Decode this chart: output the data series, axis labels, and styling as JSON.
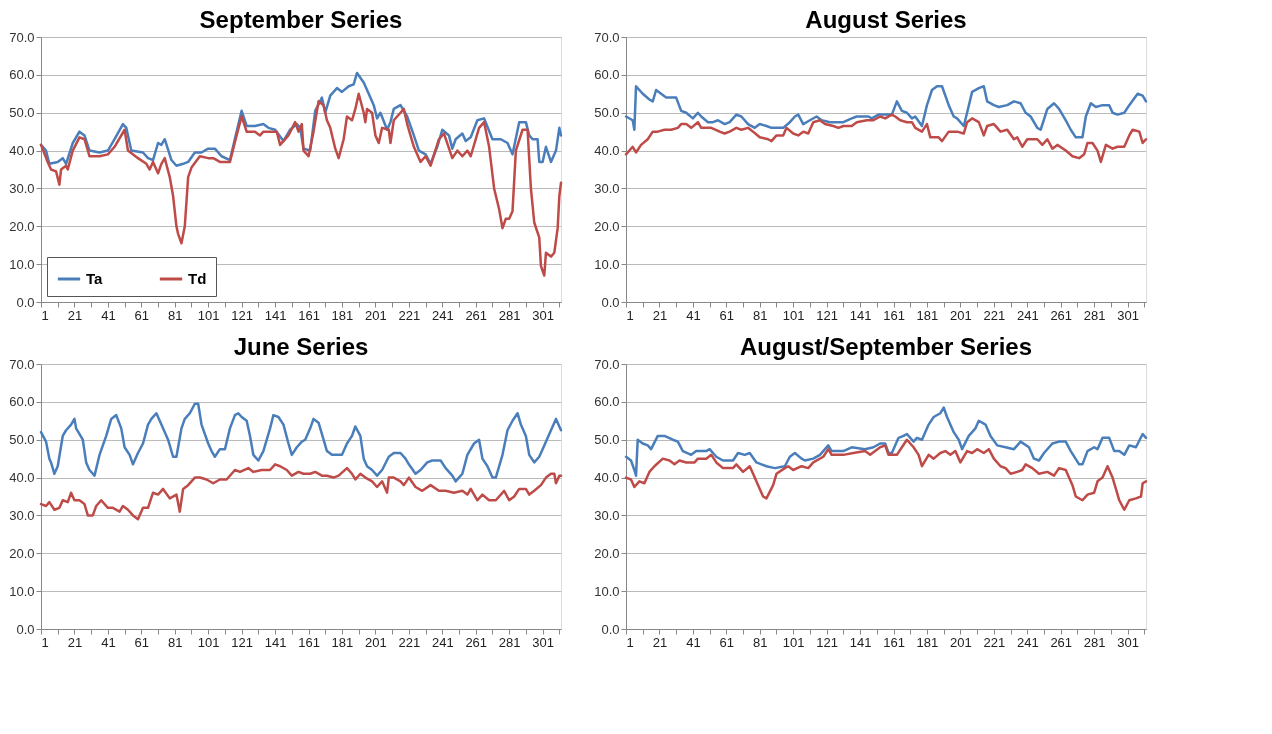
{
  "chart_data": [
    {
      "type": "line",
      "title": "September Series",
      "legend": "bottom left",
      "grid": "y",
      "xlim": [
        1,
        312
      ],
      "ylim": [
        0,
        70
      ],
      "xticks": [
        1,
        {
          "value": 11,
          "label": null
        },
        21,
        {
          "value": 31,
          "label": null
        },
        41,
        {
          "value": 51,
          "label": null
        },
        61,
        {
          "value": 71,
          "label": null
        },
        81,
        {
          "value": 91,
          "label": null
        },
        101,
        {
          "value": 111,
          "label": null
        },
        121,
        {
          "value": 131,
          "label": null
        },
        141,
        {
          "value": 151,
          "label": null
        },
        161,
        {
          "value": 171,
          "label": null
        },
        181,
        {
          "value": 191,
          "label": null
        },
        201,
        {
          "value": 211,
          "label": null
        },
        221,
        {
          "value": 231,
          "label": null
        },
        241,
        {
          "value": 251,
          "label": null
        },
        261,
        {
          "value": 271,
          "label": null
        },
        281,
        {
          "value": 291,
          "label": null
        },
        301,
        {
          "value": 311,
          "label": null
        }
      ],
      "yticks": [
        {
          "value": 0,
          "label": "0.0"
        },
        {
          "value": 10,
          "label": "10.0"
        },
        {
          "value": 20,
          "label": "20.0"
        },
        {
          "value": 30,
          "label": "30.0"
        },
        {
          "value": 40,
          "label": "40.0"
        },
        {
          "value": 50,
          "label": "50.0"
        },
        {
          "value": 60,
          "label": "60.0"
        },
        {
          "value": 70,
          "label": "70.0"
        }
      ],
      "series": [
        {
          "name": "Ta",
          "color": "#4a7ebb",
          "x": [
            1,
            4,
            6,
            11,
            14,
            16,
            20,
            24,
            27,
            30,
            36,
            41,
            45,
            50,
            52,
            55,
            62,
            65,
            68,
            71,
            73,
            75,
            79,
            82,
            86,
            89,
            93,
            97,
            101,
            105,
            109,
            114,
            118,
            121,
            124,
            129,
            134,
            137,
            141,
            146,
            150,
            154,
            156,
            158,
            162,
            165,
            169,
            171,
            174,
            178,
            181,
            185,
            188,
            190,
            194,
            197,
            200,
            202,
            204,
            208,
            210,
            212,
            216,
            220,
            224,
            227,
            231,
            234,
            238,
            241,
            245,
            247,
            249,
            253,
            255,
            258,
            262,
            266,
            271,
            276,
            280,
            283,
            287,
            291,
            293,
            295,
            298,
            299,
            301,
            303,
            306,
            309,
            311,
            312
          ],
          "values": [
            41.5,
            40,
            36.5,
            37,
            38,
            36.5,
            42,
            45,
            44,
            40,
            39.5,
            40,
            43,
            47,
            46,
            40,
            39.5,
            38,
            37.5,
            42,
            41.5,
            43,
            37.5,
            36,
            36.5,
            37,
            39.5,
            39.5,
            40.5,
            40.5,
            38.5,
            37.5,
            45,
            50.5,
            46.5,
            46.5,
            47,
            46,
            45.5,
            42.5,
            45.5,
            47,
            46,
            40.5,
            40,
            50.5,
            54,
            50,
            54.5,
            56.5,
            55.5,
            57,
            57.5,
            60.5,
            58,
            55,
            52,
            48.5,
            50,
            45.5,
            47.5,
            51,
            52,
            49,
            44,
            40,
            39,
            36.5,
            41,
            45.5,
            44,
            40.5,
            43,
            44.5,
            42.5,
            43.5,
            48,
            48.5,
            43,
            43,
            42,
            39,
            47.5,
            47.5,
            44,
            43,
            43,
            37,
            37,
            41,
            37,
            40,
            46,
            44
          ]
        },
        {
          "name": "Td",
          "color": "#be4b48",
          "x": [
            1,
            5,
            7,
            10,
            12,
            13,
            16,
            17,
            20,
            24,
            27,
            30,
            36,
            41,
            45,
            51,
            53,
            59,
            64,
            66,
            68,
            71,
            73,
            75,
            78,
            80,
            82,
            83,
            85,
            87,
            89,
            91,
            96,
            101,
            104,
            108,
            111,
            114,
            118,
            121,
            124,
            129,
            132,
            134,
            142,
            144,
            149,
            153,
            155,
            157,
            158,
            161,
            164,
            167,
            170,
            172,
            174,
            177,
            179,
            182,
            184,
            187,
            189,
            191,
            194,
            195,
            196,
            199,
            201,
            203,
            205,
            209,
            210,
            212,
            216,
            218,
            220,
            224,
            228,
            231,
            234,
            239,
            242,
            247,
            250,
            253,
            256,
            258,
            263,
            266,
            269,
            272,
            275,
            277,
            279,
            281,
            283,
            285,
            289,
            292,
            294,
            296,
            299,
            300,
            302,
            303,
            306,
            308,
            310,
            311,
            312
          ],
          "values": [
            41.5,
            37,
            35,
            34.5,
            31,
            35,
            36,
            35,
            40,
            43.5,
            43,
            38.5,
            38.5,
            39,
            41,
            45.5,
            40,
            38,
            36.5,
            35,
            37,
            34,
            36.5,
            38,
            33,
            28,
            20,
            18,
            15.5,
            20,
            33,
            35.5,
            38.5,
            38,
            38,
            37,
            37,
            37,
            44,
            49,
            45,
            45,
            44,
            45,
            45,
            41.5,
            44,
            47.5,
            45,
            47,
            40,
            38.5,
            45,
            53,
            52,
            48,
            46,
            40.5,
            38,
            43,
            49,
            48,
            51,
            55,
            50,
            47.5,
            51,
            50,
            44,
            42,
            46,
            45.5,
            42,
            48,
            50,
            51,
            47,
            41,
            37,
            38.5,
            36,
            43,
            44.5,
            38,
            40,
            38.5,
            40,
            38.5,
            46,
            47.5,
            41,
            30,
            24.5,
            19.5,
            22,
            22,
            24,
            40,
            45.5,
            45.5,
            30,
            21,
            17,
            9.5,
            7,
            13,
            12,
            13,
            19.5,
            28,
            31.5
          ]
        }
      ]
    },
    {
      "type": "line",
      "title": "August Series",
      "legend": false,
      "grid": "y",
      "xlim": [
        1,
        312
      ],
      "ylim": [
        0,
        70
      ],
      "xticks": [
        1,
        {
          "value": 11,
          "label": null
        },
        21,
        {
          "value": 31,
          "label": null
        },
        41,
        {
          "value": 51,
          "label": null
        },
        61,
        {
          "value": 71,
          "label": null
        },
        81,
        {
          "value": 91,
          "label": null
        },
        101,
        {
          "value": 111,
          "label": null
        },
        121,
        {
          "value": 131,
          "label": null
        },
        141,
        {
          "value": 151,
          "label": null
        },
        161,
        {
          "value": 171,
          "label": null
        },
        181,
        {
          "value": 191,
          "label": null
        },
        201,
        {
          "value": 211,
          "label": null
        },
        221,
        {
          "value": 231,
          "label": null
        },
        241,
        {
          "value": 251,
          "label": null
        },
        261,
        {
          "value": 271,
          "label": null
        },
        281,
        {
          "value": 291,
          "label": null
        },
        301,
        {
          "value": 311,
          "label": null
        }
      ],
      "yticks": [
        {
          "value": 0,
          "label": "0.0"
        },
        {
          "value": 10,
          "label": "10.0"
        },
        {
          "value": 20,
          "label": "20.0"
        },
        {
          "value": 30,
          "label": "30.0"
        },
        {
          "value": 40,
          "label": "40.0"
        },
        {
          "value": 50,
          "label": "50.0"
        },
        {
          "value": 60,
          "label": "60.0"
        },
        {
          "value": 70,
          "label": "70.0"
        }
      ],
      "series": [
        {
          "color": "#4a7ebb",
          "x": [
            1,
            5,
            6,
            7,
            11,
            15,
            17,
            19,
            25,
            31,
            34,
            37,
            41,
            44,
            46,
            50,
            53,
            56,
            60,
            63,
            67,
            70,
            74,
            78,
            81,
            85,
            88,
            95,
            99,
            102,
            104,
            107,
            111,
            115,
            118,
            123,
            131,
            136,
            139,
            146,
            148,
            152,
            160,
            163,
            166,
            169,
            172,
            174,
            178,
            181,
            184,
            187,
            190,
            194,
            197,
            199,
            203,
            205,
            208,
            212,
            215,
            217,
            221,
            224,
            229,
            233,
            237,
            240,
            243,
            247,
            249,
            253,
            257,
            260,
            264,
            267,
            270,
            274,
            276,
            279,
            282,
            286,
            290,
            292,
            295,
            299,
            302,
            307,
            310,
            312
          ],
          "values": [
            49,
            48,
            45.5,
            57,
            55,
            53.5,
            53,
            56,
            54,
            54,
            50.5,
            50,
            48.5,
            50,
            49,
            47.5,
            47.5,
            48,
            47,
            47.5,
            49.5,
            49,
            47,
            46,
            47,
            46.5,
            46,
            46,
            47.5,
            49,
            49.5,
            47,
            48,
            49,
            48,
            47.5,
            47.5,
            48.5,
            49,
            49,
            48.5,
            49.5,
            49.5,
            53,
            50.5,
            50,
            48.5,
            49,
            46.5,
            52,
            56,
            57,
            57,
            52,
            49,
            48.5,
            46.5,
            50,
            55.5,
            56.5,
            57,
            53,
            52,
            51.5,
            52,
            53,
            52.5,
            50,
            49,
            46,
            45.5,
            51,
            52.5,
            51,
            48,
            45.5,
            43.5,
            43.5,
            49,
            52.5,
            51.5,
            52,
            52,
            50,
            49.5,
            50,
            52,
            55,
            54.5,
            53
          ]
        },
        {
          "color": "#be4b48",
          "x": [
            1,
            5,
            7,
            10,
            14,
            17,
            20,
            24,
            28,
            32,
            34,
            37,
            40,
            44,
            46,
            52,
            57,
            60,
            63,
            67,
            70,
            74,
            77,
            81,
            86,
            88,
            91,
            95,
            97,
            101,
            104,
            107,
            110,
            113,
            117,
            120,
            125,
            128,
            131,
            136,
            139,
            145,
            149,
            153,
            156,
            160,
            162,
            165,
            169,
            172,
            174,
            178,
            181,
            183,
            188,
            190,
            194,
            199,
            203,
            205,
            208,
            212,
            215,
            217,
            221,
            225,
            229,
            233,
            235,
            238,
            241,
            247,
            250,
            253,
            256,
            259,
            264,
            268,
            272,
            275,
            277,
            280,
            283,
            285,
            288,
            292,
            295,
            299,
            302,
            304,
            308,
            310,
            312
          ],
          "values": [
            39,
            41,
            39.5,
            41.5,
            43,
            45,
            45,
            45.5,
            45.5,
            46,
            47,
            47,
            46,
            47.5,
            46,
            46,
            45,
            44.5,
            45,
            46,
            45.5,
            46,
            45,
            43.5,
            43,
            42.5,
            44,
            44,
            46,
            44.5,
            44,
            45,
            44.5,
            47.5,
            48,
            47,
            46.5,
            46,
            46.5,
            46.5,
            47.5,
            48,
            48,
            49,
            48.5,
            49.5,
            49,
            48,
            47.5,
            47.5,
            46,
            45,
            47,
            43.5,
            43.5,
            42.5,
            45,
            45,
            44.5,
            47.5,
            48.5,
            47.5,
            44,
            46.5,
            47,
            45,
            45.5,
            43,
            43.5,
            41,
            43,
            43,
            41.5,
            43,
            40.5,
            41.5,
            40,
            38.5,
            38,
            39,
            42,
            42,
            40,
            37,
            41.5,
            40.5,
            41,
            41,
            44,
            45.5,
            45,
            42,
            43
          ]
        }
      ]
    },
    {
      "type": "line",
      "title": "June Series",
      "legend": false,
      "grid": "y",
      "xlim": [
        1,
        312
      ],
      "ylim": [
        0,
        70
      ],
      "xticks": [
        1,
        {
          "value": 11,
          "label": null
        },
        21,
        {
          "value": 31,
          "label": null
        },
        41,
        {
          "value": 51,
          "label": null
        },
        61,
        {
          "value": 71,
          "label": null
        },
        81,
        {
          "value": 91,
          "label": null
        },
        101,
        {
          "value": 111,
          "label": null
        },
        121,
        {
          "value": 131,
          "label": null
        },
        141,
        {
          "value": 151,
          "label": null
        },
        161,
        {
          "value": 171,
          "label": null
        },
        181,
        {
          "value": 191,
          "label": null
        },
        201,
        {
          "value": 211,
          "label": null
        },
        221,
        {
          "value": 231,
          "label": null
        },
        241,
        {
          "value": 251,
          "label": null
        },
        261,
        {
          "value": 271,
          "label": null
        },
        281,
        {
          "value": 291,
          "label": null
        },
        301,
        {
          "value": 311,
          "label": null
        }
      ],
      "yticks": [
        {
          "value": 0,
          "label": "0.0"
        },
        {
          "value": 10,
          "label": "10.0"
        },
        {
          "value": 20,
          "label": "20.0"
        },
        {
          "value": 30,
          "label": "30.0"
        },
        {
          "value": 40,
          "label": "40.0"
        },
        {
          "value": 50,
          "label": "50.0"
        },
        {
          "value": 60,
          "label": "60.0"
        },
        {
          "value": 70,
          "label": "70.0"
        }
      ],
      "series": [
        {
          "color": "#4a7ebb",
          "x": [
            1,
            4,
            6,
            7,
            9,
            11,
            14,
            16,
            19,
            21,
            22,
            26,
            28,
            30,
            33,
            36,
            40,
            43,
            46,
            49,
            51,
            54,
            56,
            59,
            62,
            65,
            67,
            70,
            73,
            77,
            80,
            82,
            85,
            87,
            90,
            93,
            95,
            97,
            101,
            103,
            105,
            108,
            111,
            114,
            117,
            119,
            121,
            124,
            126,
            128,
            131,
            134,
            138,
            140,
            143,
            146,
            149,
            151,
            154,
            157,
            159,
            162,
            164,
            167,
            170,
            172,
            175,
            178,
            181,
            184,
            187,
            189,
            192,
            194,
            196,
            199,
            202,
            205,
            209,
            212,
            216,
            219,
            221,
            225,
            228,
            232,
            235,
            240,
            243,
            247,
            249,
            253,
            256,
            260,
            263,
            265,
            268,
            271,
            273,
            277,
            280,
            283,
            286,
            288,
            291,
            293,
            296,
            299,
            302,
            306,
            309,
            311,
            312
          ],
          "values": [
            52,
            49.5,
            45,
            44,
            41,
            43,
            51,
            52.5,
            54,
            55.5,
            53,
            50,
            44,
            42,
            40.5,
            46,
            51,
            55.5,
            56.5,
            53,
            48,
            46,
            43.5,
            46.5,
            49,
            54,
            55.5,
            57,
            54,
            50,
            45.5,
            45.5,
            53,
            55.5,
            57,
            59.5,
            59.5,
            54,
            49,
            47,
            45.5,
            47.5,
            47.5,
            53,
            56.5,
            57,
            56,
            55,
            51,
            46,
            44.5,
            47,
            53,
            56.5,
            56,
            54,
            49,
            46,
            48,
            49.5,
            50,
            53,
            55.5,
            54.5,
            50,
            47,
            46,
            46,
            46,
            49,
            51,
            53.5,
            51,
            45,
            43,
            42,
            40.5,
            42,
            45.5,
            46.5,
            46.5,
            45,
            43.5,
            41,
            42,
            44,
            44.5,
            44.5,
            42.5,
            40.5,
            39,
            41,
            46,
            49,
            50,
            45,
            43,
            40,
            40,
            46,
            52.5,
            55,
            57,
            54,
            51,
            46,
            44,
            45.5,
            48.5,
            52.5,
            55.5,
            53.5,
            52.5
          ]
        },
        {
          "color": "#be4b48",
          "x": [
            1,
            4,
            6,
            9,
            12,
            14,
            17,
            19,
            21,
            24,
            27,
            29,
            32,
            34,
            37,
            41,
            44,
            48,
            50,
            53,
            56,
            59,
            62,
            65,
            68,
            71,
            74,
            78,
            82,
            84,
            86,
            89,
            93,
            96,
            100,
            104,
            108,
            112,
            117,
            120,
            125,
            128,
            133,
            138,
            141,
            144,
            148,
            151,
            155,
            158,
            162,
            165,
            169,
            172,
            176,
            179,
            184,
            187,
            189,
            192,
            195,
            199,
            202,
            205,
            208,
            209,
            212,
            216,
            218,
            221,
            225,
            229,
            234,
            239,
            243,
            248,
            253,
            256,
            258,
            262,
            265,
            269,
            273,
            278,
            281,
            284,
            287,
            291,
            293,
            296,
            300,
            303,
            306,
            308,
            309,
            311,
            312
          ],
          "values": [
            33,
            32.5,
            33.5,
            31.5,
            32,
            34,
            33.5,
            36,
            34,
            34,
            33,
            30,
            30,
            32.5,
            34,
            32,
            32,
            31,
            32.5,
            31.5,
            30,
            29,
            32,
            32,
            36,
            35.5,
            37,
            34.5,
            35.5,
            31,
            37,
            38,
            40,
            40,
            39.5,
            38.5,
            39.5,
            39.5,
            42,
            41.5,
            42.5,
            41.5,
            42,
            42,
            43.5,
            43,
            42,
            40.5,
            41.5,
            41,
            41,
            41.5,
            40.5,
            40.5,
            40,
            40.5,
            42.5,
            41,
            39.5,
            41,
            40,
            39,
            37.5,
            39,
            36,
            40,
            40,
            39,
            38,
            40,
            37.5,
            36.5,
            38,
            36.5,
            36.5,
            36,
            36.5,
            35.5,
            37,
            34,
            35.5,
            34,
            34,
            36.5,
            34,
            35,
            37,
            37,
            35.5,
            36.5,
            38,
            40,
            41,
            41,
            38.5,
            40.5,
            40.5
          ]
        }
      ]
    },
    {
      "type": "line",
      "title": "August/September Series",
      "legend": false,
      "grid": "y",
      "xlim": [
        1,
        312
      ],
      "ylim": [
        0,
        70
      ],
      "xticks": [
        1,
        {
          "value": 11,
          "label": null
        },
        21,
        {
          "value": 31,
          "label": null
        },
        41,
        {
          "value": 51,
          "label": null
        },
        61,
        {
          "value": 71,
          "label": null
        },
        81,
        {
          "value": 91,
          "label": null
        },
        101,
        {
          "value": 111,
          "label": null
        },
        121,
        {
          "value": 131,
          "label": null
        },
        141,
        {
          "value": 151,
          "label": null
        },
        161,
        {
          "value": 171,
          "label": null
        },
        181,
        {
          "value": 191,
          "label": null
        },
        201,
        {
          "value": 211,
          "label": null
        },
        221,
        {
          "value": 231,
          "label": null
        },
        241,
        {
          "value": 251,
          "label": null
        },
        261,
        {
          "value": 271,
          "label": null
        },
        281,
        {
          "value": 291,
          "label": null
        },
        301,
        {
          "value": 311,
          "label": null
        }
      ],
      "yticks": [
        {
          "value": 0,
          "label": "0.0"
        },
        {
          "value": 10,
          "label": "10.0"
        },
        {
          "value": 20,
          "label": "20.0"
        },
        {
          "value": 30,
          "label": "30.0"
        },
        {
          "value": 40,
          "label": "40.0"
        },
        {
          "value": 50,
          "label": "50.0"
        },
        {
          "value": 60,
          "label": "60.0"
        },
        {
          "value": 70,
          "label": "70.0"
        }
      ],
      "series": [
        {
          "color": "#4a7ebb",
          "x": [
            1,
            4,
            6,
            7,
            8,
            11,
            14,
            16,
            20,
            24,
            29,
            32,
            35,
            40,
            43,
            49,
            51,
            55,
            59,
            65,
            68,
            72,
            75,
            79,
            82,
            85,
            90,
            96,
            99,
            102,
            106,
            108,
            113,
            117,
            122,
            124,
            131,
            136,
            144,
            149,
            153,
            156,
            158,
            160,
            164,
            167,
            169,
            173,
            175,
            178,
            182,
            185,
            189,
            191,
            193,
            197,
            200,
            202,
            206,
            210,
            212,
            216,
            219,
            223,
            228,
            233,
            237,
            242,
            245,
            248,
            251,
            256,
            260,
            264,
            267,
            272,
            274,
            277,
            281,
            283,
            286,
            290,
            293,
            296,
            299,
            302,
            306,
            310,
            312
          ],
          "values": [
            45.5,
            44.5,
            42,
            40.5,
            50,
            49,
            48.5,
            47.5,
            51,
            51,
            50,
            49.5,
            47,
            46,
            47,
            47,
            47.5,
            45.5,
            44.5,
            44.5,
            46.5,
            46,
            46.5,
            44,
            43.5,
            43,
            42.5,
            43,
            45.5,
            46.5,
            45,
            44.5,
            45,
            46,
            48.5,
            47,
            47,
            48,
            47.5,
            48,
            49,
            49,
            46.5,
            46.5,
            50.5,
            51,
            51.5,
            49.5,
            50.5,
            50,
            54,
            56,
            57,
            58.5,
            56,
            52,
            50,
            47.5,
            51,
            53,
            55,
            54,
            51,
            48.5,
            48,
            47.5,
            49.5,
            48,
            45,
            44.5,
            46.5,
            49,
            49.5,
            49.5,
            47,
            43.5,
            43.5,
            47,
            48,
            47.5,
            50.5,
            50.5,
            47,
            47,
            46,
            48.5,
            48,
            51.5,
            50.5
          ]
        },
        {
          "color": "#be4b48",
          "x": [
            1,
            4,
            6,
            9,
            12,
            15,
            18,
            23,
            27,
            30,
            33,
            37,
            42,
            44,
            49,
            52,
            55,
            59,
            65,
            67,
            71,
            75,
            78,
            81,
            83,
            85,
            89,
            91,
            96,
            98,
            101,
            106,
            110,
            113,
            119,
            122,
            124,
            131,
            137,
            144,
            147,
            153,
            156,
            158,
            163,
            166,
            169,
            173,
            176,
            178,
            182,
            185,
            189,
            192,
            195,
            198,
            201,
            205,
            208,
            211,
            215,
            218,
            221,
            225,
            228,
            231,
            235,
            238,
            240,
            244,
            248,
            253,
            257,
            260,
            264,
            268,
            270,
            274,
            277,
            281,
            283,
            286,
            289,
            292,
            294,
            296,
            299,
            302,
            306,
            309,
            310,
            312
          ],
          "values": [
            40,
            39.5,
            37.5,
            39,
            38.5,
            41.5,
            43,
            45,
            44.5,
            43.5,
            44.5,
            44,
            44,
            45,
            45,
            46,
            44,
            42.5,
            42.5,
            43.5,
            41.5,
            43,
            40,
            37,
            35,
            34.5,
            38,
            41,
            42.5,
            43,
            42,
            43,
            42.5,
            44,
            45.5,
            47.5,
            46,
            46,
            46.5,
            47,
            46,
            48,
            48.5,
            46,
            46,
            48,
            50,
            48,
            46,
            43,
            46,
            45,
            46.5,
            47,
            46,
            47,
            44,
            47,
            46.5,
            47.5,
            46.5,
            47.5,
            45,
            43,
            42.5,
            41,
            41.5,
            42,
            43.5,
            42.5,
            41,
            41.5,
            40.5,
            42.5,
            42,
            38,
            35,
            34,
            35.5,
            36,
            39,
            40,
            43,
            40,
            37,
            34,
            31.5,
            34,
            34.5,
            35,
            38.5,
            39
          ]
        }
      ]
    }
  ]
}
